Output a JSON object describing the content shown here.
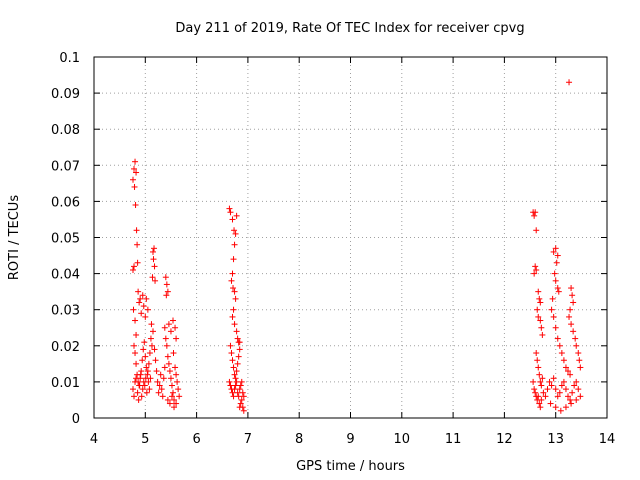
{
  "chart_data": {
    "type": "scatter",
    "title": "Day 211 of 2019, Rate Of TEC Index for receiver cpvg",
    "xlabel": "GPS time / hours",
    "ylabel": "ROTI / TECUs",
    "xlim": [
      4,
      14
    ],
    "ylim": [
      0,
      0.1
    ],
    "grid": true,
    "marker": "+",
    "color": "#ff0000",
    "x_ticks": [
      "4",
      "5",
      "6",
      "7",
      "8",
      "9",
      "10",
      "11",
      "12",
      "13",
      "14"
    ],
    "y_ticks": [
      "0",
      "0.01",
      "0.02",
      "0.03",
      "0.04",
      "0.05",
      "0.06",
      "0.07",
      "0.08",
      "0.09",
      "0.1"
    ],
    "series": [
      {
        "name": "ROTI",
        "points": [
          [
            4.76,
            0.066
          ],
          [
            4.78,
            0.069
          ],
          [
            4.8,
            0.071
          ],
          [
            4.79,
            0.064
          ],
          [
            4.82,
            0.068
          ],
          [
            4.81,
            0.059
          ],
          [
            4.83,
            0.052
          ],
          [
            4.84,
            0.048
          ],
          [
            4.85,
            0.043
          ],
          [
            4.76,
            0.041
          ],
          [
            4.78,
            0.042
          ],
          [
            4.77,
            0.03
          ],
          [
            4.8,
            0.027
          ],
          [
            4.82,
            0.023
          ],
          [
            4.86,
            0.035
          ],
          [
            4.88,
            0.032
          ],
          [
            4.9,
            0.033
          ],
          [
            4.92,
            0.029
          ],
          [
            4.95,
            0.034
          ],
          [
            4.97,
            0.031
          ],
          [
            5.0,
            0.028
          ],
          [
            5.02,
            0.033
          ],
          [
            5.05,
            0.03
          ],
          [
            4.78,
            0.02
          ],
          [
            4.8,
            0.018
          ],
          [
            4.82,
            0.015
          ],
          [
            4.84,
            0.012
          ],
          [
            4.86,
            0.01
          ],
          [
            4.88,
            0.009
          ],
          [
            4.9,
            0.011
          ],
          [
            4.92,
            0.013
          ],
          [
            4.94,
            0.016
          ],
          [
            4.96,
            0.019
          ],
          [
            4.98,
            0.021
          ],
          [
            5.0,
            0.017
          ],
          [
            5.02,
            0.014
          ],
          [
            5.04,
            0.012
          ],
          [
            5.06,
            0.01
          ],
          [
            5.08,
            0.008
          ],
          [
            5.1,
            0.011
          ],
          [
            4.76,
            0.008
          ],
          [
            4.78,
            0.006
          ],
          [
            4.8,
            0.01
          ],
          [
            4.82,
            0.011
          ],
          [
            4.85,
            0.007
          ],
          [
            4.87,
            0.005
          ],
          [
            4.89,
            0.009
          ],
          [
            4.91,
            0.012
          ],
          [
            4.93,
            0.006
          ],
          [
            4.95,
            0.008
          ],
          [
            4.97,
            0.01
          ],
          [
            4.99,
            0.009
          ],
          [
            5.01,
            0.011
          ],
          [
            5.03,
            0.007
          ],
          [
            5.05,
            0.013
          ],
          [
            5.07,
            0.015
          ],
          [
            5.09,
            0.018
          ],
          [
            5.11,
            0.022
          ],
          [
            5.13,
            0.02
          ],
          [
            5.15,
            0.046
          ],
          [
            5.17,
            0.047
          ],
          [
            5.16,
            0.044
          ],
          [
            5.18,
            0.042
          ],
          [
            5.14,
            0.039
          ],
          [
            5.19,
            0.038
          ],
          [
            5.12,
            0.026
          ],
          [
            5.15,
            0.024
          ],
          [
            5.18,
            0.019
          ],
          [
            5.2,
            0.016
          ],
          [
            5.22,
            0.013
          ],
          [
            5.24,
            0.01
          ],
          [
            5.26,
            0.007
          ],
          [
            5.28,
            0.009
          ],
          [
            5.3,
            0.012
          ],
          [
            5.32,
            0.008
          ],
          [
            5.34,
            0.006
          ],
          [
            5.36,
            0.011
          ],
          [
            5.38,
            0.014
          ],
          [
            5.4,
            0.039
          ],
          [
            5.42,
            0.037
          ],
          [
            5.41,
            0.034
          ],
          [
            5.44,
            0.035
          ],
          [
            5.38,
            0.025
          ],
          [
            5.4,
            0.022
          ],
          [
            5.42,
            0.02
          ],
          [
            5.44,
            0.017
          ],
          [
            5.46,
            0.015
          ],
          [
            5.48,
            0.013
          ],
          [
            5.5,
            0.011
          ],
          [
            5.52,
            0.009
          ],
          [
            5.54,
            0.007
          ],
          [
            5.56,
            0.005
          ],
          [
            5.46,
            0.026
          ],
          [
            5.5,
            0.024
          ],
          [
            5.54,
            0.027
          ],
          [
            5.58,
            0.025
          ],
          [
            5.6,
            0.022
          ],
          [
            5.55,
            0.018
          ],
          [
            5.58,
            0.014
          ],
          [
            5.6,
            0.012
          ],
          [
            5.62,
            0.01
          ],
          [
            5.64,
            0.008
          ],
          [
            5.66,
            0.006
          ],
          [
            5.44,
            0.005
          ],
          [
            5.48,
            0.004
          ],
          [
            5.52,
            0.006
          ],
          [
            5.56,
            0.003
          ],
          [
            5.6,
            0.004
          ],
          [
            6.64,
            0.058
          ],
          [
            6.66,
            0.057
          ],
          [
            6.7,
            0.055
          ],
          [
            6.73,
            0.052
          ],
          [
            6.76,
            0.051
          ],
          [
            6.78,
            0.056
          ],
          [
            6.74,
            0.048
          ],
          [
            6.72,
            0.044
          ],
          [
            6.7,
            0.04
          ],
          [
            6.68,
            0.038
          ],
          [
            6.71,
            0.036
          ],
          [
            6.74,
            0.035
          ],
          [
            6.76,
            0.033
          ],
          [
            6.72,
            0.03
          ],
          [
            6.7,
            0.028
          ],
          [
            6.74,
            0.026
          ],
          [
            6.78,
            0.024
          ],
          [
            6.8,
            0.022
          ],
          [
            6.82,
            0.021
          ],
          [
            6.84,
            0.021
          ],
          [
            6.66,
            0.02
          ],
          [
            6.68,
            0.018
          ],
          [
            6.7,
            0.016
          ],
          [
            6.72,
            0.014
          ],
          [
            6.74,
            0.012
          ],
          [
            6.76,
            0.011
          ],
          [
            6.78,
            0.013
          ],
          [
            6.8,
            0.015
          ],
          [
            6.82,
            0.017
          ],
          [
            6.84,
            0.019
          ],
          [
            6.64,
            0.01
          ],
          [
            6.66,
            0.009
          ],
          [
            6.68,
            0.008
          ],
          [
            6.7,
            0.007
          ],
          [
            6.72,
            0.006
          ],
          [
            6.74,
            0.008
          ],
          [
            6.76,
            0.009
          ],
          [
            6.78,
            0.01
          ],
          [
            6.8,
            0.007
          ],
          [
            6.82,
            0.006
          ],
          [
            6.84,
            0.008
          ],
          [
            6.86,
            0.009
          ],
          [
            6.88,
            0.01
          ],
          [
            6.9,
            0.007
          ],
          [
            6.92,
            0.006
          ],
          [
            6.88,
            0.005
          ],
          [
            6.86,
            0.004
          ],
          [
            6.84,
            0.003
          ],
          [
            6.9,
            0.003
          ],
          [
            6.92,
            0.002
          ],
          [
            12.56,
            0.057
          ],
          [
            12.58,
            0.056
          ],
          [
            12.6,
            0.057
          ],
          [
            12.62,
            0.052
          ],
          [
            12.6,
            0.042
          ],
          [
            12.62,
            0.041
          ],
          [
            12.58,
            0.04
          ],
          [
            12.66,
            0.035
          ],
          [
            12.68,
            0.033
          ],
          [
            12.7,
            0.032
          ],
          [
            12.64,
            0.03
          ],
          [
            12.66,
            0.028
          ],
          [
            12.7,
            0.027
          ],
          [
            12.72,
            0.025
          ],
          [
            12.74,
            0.023
          ],
          [
            12.62,
            0.018
          ],
          [
            12.64,
            0.016
          ],
          [
            12.66,
            0.014
          ],
          [
            12.68,
            0.012
          ],
          [
            12.7,
            0.01
          ],
          [
            12.72,
            0.009
          ],
          [
            12.74,
            0.011
          ],
          [
            12.56,
            0.01
          ],
          [
            12.58,
            0.008
          ],
          [
            12.6,
            0.007
          ],
          [
            12.62,
            0.006
          ],
          [
            12.64,
            0.005
          ],
          [
            12.66,
            0.006
          ],
          [
            12.68,
            0.004
          ],
          [
            12.7,
            0.003
          ],
          [
            12.72,
            0.005
          ],
          [
            12.76,
            0.007
          ],
          [
            12.8,
            0.006
          ],
          [
            12.84,
            0.008
          ],
          [
            12.88,
            0.01
          ],
          [
            12.92,
            0.009
          ],
          [
            12.96,
            0.011
          ],
          [
            13.0,
            0.008
          ],
          [
            13.04,
            0.006
          ],
          [
            13.08,
            0.007
          ],
          [
            13.12,
            0.009
          ],
          [
            13.16,
            0.01
          ],
          [
            13.2,
            0.008
          ],
          [
            13.24,
            0.006
          ],
          [
            13.28,
            0.005
          ],
          [
            13.32,
            0.007
          ],
          [
            13.36,
            0.009
          ],
          [
            13.4,
            0.01
          ],
          [
            13.44,
            0.008
          ],
          [
            13.48,
            0.006
          ],
          [
            12.96,
            0.046
          ],
          [
            13.0,
            0.047
          ],
          [
            13.04,
            0.045
          ],
          [
            13.02,
            0.043
          ],
          [
            12.98,
            0.04
          ],
          [
            13.0,
            0.038
          ],
          [
            13.04,
            0.036
          ],
          [
            13.06,
            0.035
          ],
          [
            12.94,
            0.033
          ],
          [
            12.92,
            0.03
          ],
          [
            12.96,
            0.028
          ],
          [
            13.0,
            0.025
          ],
          [
            13.04,
            0.022
          ],
          [
            13.08,
            0.02
          ],
          [
            13.12,
            0.018
          ],
          [
            13.16,
            0.016
          ],
          [
            13.2,
            0.014
          ],
          [
            13.24,
            0.013
          ],
          [
            13.28,
            0.012
          ],
          [
            13.3,
            0.036
          ],
          [
            13.32,
            0.034
          ],
          [
            13.34,
            0.032
          ],
          [
            13.28,
            0.03
          ],
          [
            13.26,
            0.028
          ],
          [
            13.3,
            0.026
          ],
          [
            13.34,
            0.024
          ],
          [
            13.38,
            0.022
          ],
          [
            13.4,
            0.02
          ],
          [
            13.44,
            0.018
          ],
          [
            13.46,
            0.016
          ],
          [
            13.48,
            0.014
          ],
          [
            13.26,
            0.093
          ],
          [
            12.9,
            0.004
          ],
          [
            13.0,
            0.003
          ],
          [
            13.1,
            0.002
          ],
          [
            13.2,
            0.003
          ],
          [
            13.3,
            0.004
          ],
          [
            13.4,
            0.005
          ]
        ]
      }
    ]
  }
}
